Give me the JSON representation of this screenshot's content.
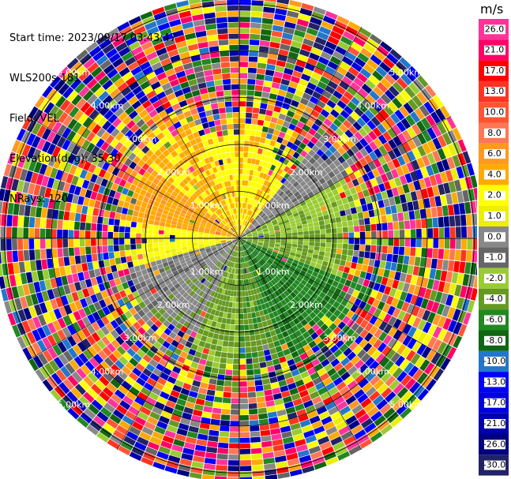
{
  "info": {
    "start_time": "Start time: 2023/09/17 03:43:47",
    "station": "WLS200s-181",
    "field": "Field: VEL",
    "elevation": "Elevation(deg): 35.30",
    "nrays": "NRays: 120"
  },
  "chart_data": {
    "type": "ppi",
    "field": "VEL",
    "units": "m/s",
    "elevation_deg": 35.3,
    "n_rays": 120,
    "range_rings_km": [
      1.0,
      2.0,
      3.0,
      4.0,
      5.0
    ],
    "range_ring_labels": [
      "1.00km",
      "2.00km",
      "3.00km",
      "4.00km",
      "5.00km"
    ],
    "max_range_km": 5.2,
    "colorbar": {
      "unit": "m/s",
      "range": [
        -30.0,
        30.0
      ],
      "ticks": [
        "26.0",
        "21.0",
        "17.0",
        "13.0",
        "10.0",
        "8.0",
        "6.0",
        "4.0",
        "2.0",
        "1.0",
        "0.0",
        "-1.0",
        "-2.0",
        "-4.0",
        "-6.0",
        "-8.0",
        "-10.0",
        "-13.0",
        "-17.0",
        "-21.0",
        "-26.0",
        "-30.0"
      ],
      "colors": [
        "#ff3399",
        "#ff0066",
        "#ff0000",
        "#ff3322",
        "#ff5533",
        "#ff7755",
        "#ff9922",
        "#ffaa00",
        "#ffff00",
        "#eeee00",
        "#888888",
        "#666666",
        "#99cc33",
        "#669922",
        "#228822",
        "#116611",
        "#2277cc",
        "#0000ff",
        "#0000dd",
        "#0000aa",
        "#000080",
        "#222266"
      ]
    },
    "sectors": [
      {
        "az_start": 0,
        "az_end": 20,
        "near": 2.2,
        "colors": [
          "#ffff00",
          "#ffaa00"
        ]
      },
      {
        "az_start": 20,
        "az_end": 40,
        "near": 1.6,
        "colors": [
          "#ffff00",
          "#ffaa00"
        ]
      },
      {
        "az_start": 40,
        "az_end": 60,
        "near": 2.6,
        "colors": [
          "#888888",
          "#666666"
        ]
      },
      {
        "az_start": 60,
        "az_end": 85,
        "near": 2.4,
        "colors": [
          "#99cc33",
          "#669922"
        ]
      },
      {
        "az_start": 85,
        "az_end": 110,
        "near": 2.2,
        "colors": [
          "#669922",
          "#99cc33"
        ]
      },
      {
        "az_start": 110,
        "az_end": 160,
        "near": 2.6,
        "colors": [
          "#228822",
          "#116611"
        ]
      },
      {
        "az_start": 160,
        "az_end": 180,
        "near": 2.4,
        "colors": [
          "#669922",
          "#228822"
        ]
      },
      {
        "az_start": 180,
        "az_end": 205,
        "near": 2.6,
        "colors": [
          "#669922",
          "#99cc33"
        ]
      },
      {
        "az_start": 205,
        "az_end": 230,
        "near": 2.4,
        "colors": [
          "#888888",
          "#669922"
        ]
      },
      {
        "az_start": 230,
        "az_end": 255,
        "near": 2.2,
        "colors": [
          "#888888",
          "#666666"
        ]
      },
      {
        "az_start": 255,
        "az_end": 280,
        "near": 2.0,
        "colors": [
          "#ffff00",
          "#eeee00"
        ]
      },
      {
        "az_start": 280,
        "az_end": 310,
        "near": 2.4,
        "colors": [
          "#ffaa00",
          "#ff9922"
        ]
      },
      {
        "az_start": 310,
        "az_end": 340,
        "near": 2.8,
        "colors": [
          "#ffaa00",
          "#ffff00"
        ]
      },
      {
        "az_start": 340,
        "az_end": 360,
        "near": 2.2,
        "colors": [
          "#ffff00",
          "#ffaa00"
        ]
      }
    ]
  }
}
